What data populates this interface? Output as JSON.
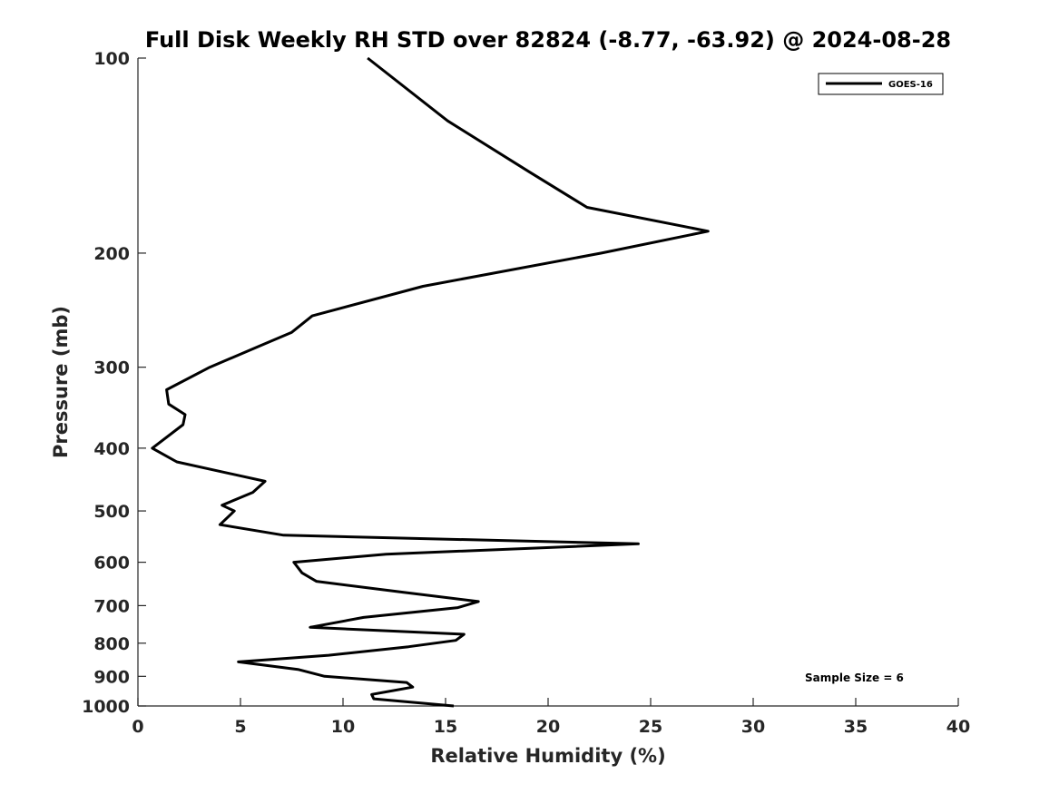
{
  "chart_data": {
    "type": "line",
    "title": "Full Disk Weekly RH STD over 82824 (-8.77, -63.92) @ 2024-08-28",
    "xlabel": "Relative Humidity (%)",
    "ylabel": "Pressure (mb)",
    "xlim": [
      0,
      40
    ],
    "ylim": [
      100,
      1000
    ],
    "y_scale": "log",
    "y_reversed": true,
    "grid": false,
    "legend_position": "top-right",
    "xticks": [
      0,
      5,
      10,
      15,
      20,
      25,
      30,
      35,
      40
    ],
    "yticks": [
      100,
      200,
      300,
      400,
      500,
      600,
      700,
      800,
      900,
      1000
    ],
    "annotation": "Sample Size = 6",
    "series": [
      {
        "name": "GOES-16",
        "color": "#000000",
        "points": [
          [
            11.2,
            100
          ],
          [
            15.1,
            125
          ],
          [
            19.1,
            150
          ],
          [
            21.9,
            170
          ],
          [
            27.8,
            185
          ],
          [
            22.6,
            200
          ],
          [
            13.9,
            225
          ],
          [
            8.5,
            250
          ],
          [
            7.5,
            265
          ],
          [
            3.5,
            300
          ],
          [
            1.4,
            325
          ],
          [
            1.5,
            342
          ],
          [
            2.3,
            355
          ],
          [
            2.2,
            368
          ],
          [
            0.7,
            400
          ],
          [
            1.9,
            420
          ],
          [
            6.2,
            450
          ],
          [
            5.6,
            468
          ],
          [
            4.1,
            490
          ],
          [
            4.7,
            500
          ],
          [
            4.0,
            525
          ],
          [
            7.1,
            545
          ],
          [
            24.4,
            562
          ],
          [
            12.1,
            583
          ],
          [
            7.6,
            600
          ],
          [
            8.0,
            623
          ],
          [
            8.7,
            642
          ],
          [
            13.0,
            668
          ],
          [
            16.6,
            690
          ],
          [
            15.6,
            705
          ],
          [
            11.0,
            730
          ],
          [
            8.4,
            756
          ],
          [
            15.9,
            775
          ],
          [
            15.5,
            792
          ],
          [
            13.2,
            810
          ],
          [
            9.3,
            835
          ],
          [
            4.9,
            855
          ],
          [
            7.8,
            878
          ],
          [
            9.1,
            900
          ],
          [
            13.1,
            920
          ],
          [
            13.4,
            935
          ],
          [
            11.4,
            960
          ],
          [
            11.5,
            975
          ],
          [
            15.4,
            1000
          ]
        ]
      }
    ]
  }
}
